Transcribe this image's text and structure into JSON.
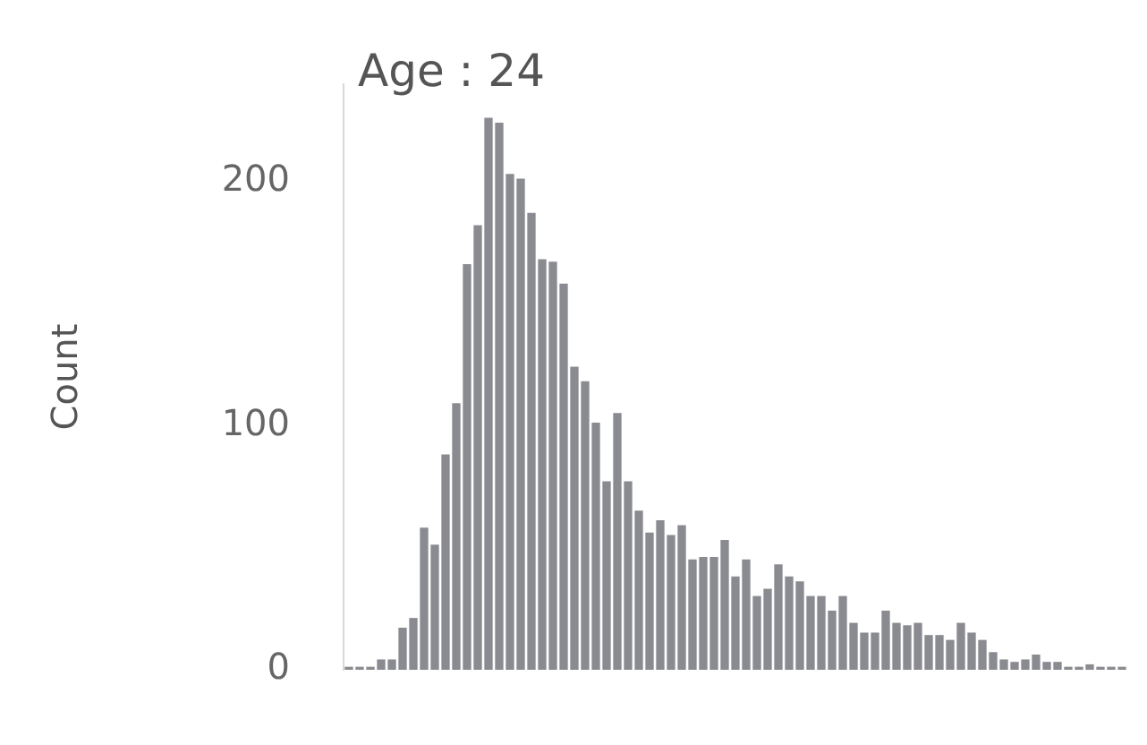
{
  "chart_data": {
    "type": "bar",
    "title": "Age : 24",
    "ylabel": "Count",
    "categories": [
      null,
      null,
      null,
      null,
      null,
      null,
      null,
      null,
      null,
      null,
      null,
      null,
      null,
      null,
      null,
      null,
      null,
      null,
      null,
      null,
      null,
      null,
      null,
      null,
      null,
      null,
      null,
      null,
      null,
      null,
      null,
      null,
      null,
      null,
      null,
      null,
      null,
      null,
      null,
      null,
      null,
      null,
      null,
      null,
      null,
      null,
      null,
      null,
      null,
      null,
      null,
      null,
      null,
      null,
      null,
      null,
      null,
      null,
      null,
      null,
      null,
      null,
      null,
      null,
      null,
      null,
      null,
      null,
      null,
      null,
      null,
      null,
      null
    ],
    "values": [
      1,
      1,
      1,
      4,
      4,
      17,
      21,
      58,
      51,
      88,
      109,
      166,
      182,
      226,
      224,
      203,
      201,
      187,
      168,
      167,
      158,
      124,
      118,
      101,
      77,
      105,
      77,
      65,
      56,
      61,
      55,
      59,
      45,
      46,
      46,
      53,
      38,
      45,
      30,
      33,
      43,
      38,
      36,
      30,
      30,
      24,
      30,
      19,
      15,
      15,
      24,
      19,
      18,
      19,
      14,
      14,
      12,
      19,
      15,
      12,
      7,
      4,
      3,
      4,
      6,
      3,
      3,
      1,
      1,
      2,
      1,
      1,
      1
    ],
    "color": "#8a8b90",
    "yticks": [
      0,
      100,
      200
    ],
    "ylim": [
      0,
      240
    ],
    "grid": false
  }
}
